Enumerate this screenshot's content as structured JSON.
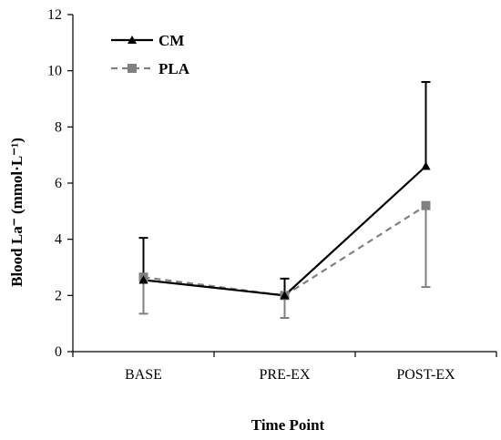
{
  "chart_data": {
    "type": "line",
    "title": "",
    "xlabel": "Time Point",
    "ylabel": "Blood La⁻ (mmol·L⁻¹)",
    "categories": [
      "BASE",
      "PRE-EX",
      "POST-EX"
    ],
    "ylim": [
      0,
      12
    ],
    "yticks": [
      0,
      2,
      4,
      6,
      8,
      10,
      12
    ],
    "grid": false,
    "legend_position": "top-left",
    "series": [
      {
        "name": "CM",
        "values": [
          2.55,
          2.0,
          6.6
        ],
        "error_up": [
          1.5,
          0.6,
          3.0
        ],
        "error_down": [
          0,
          0,
          0
        ],
        "color": "#000000",
        "line_style": "solid",
        "marker": "triangle"
      },
      {
        "name": "PLA",
        "values": [
          2.65,
          2.0,
          5.2
        ],
        "error_up": [
          0,
          0,
          0
        ],
        "error_down": [
          1.3,
          0.8,
          2.9
        ],
        "color": "#808080",
        "line_style": "dashed",
        "marker": "square"
      }
    ]
  }
}
